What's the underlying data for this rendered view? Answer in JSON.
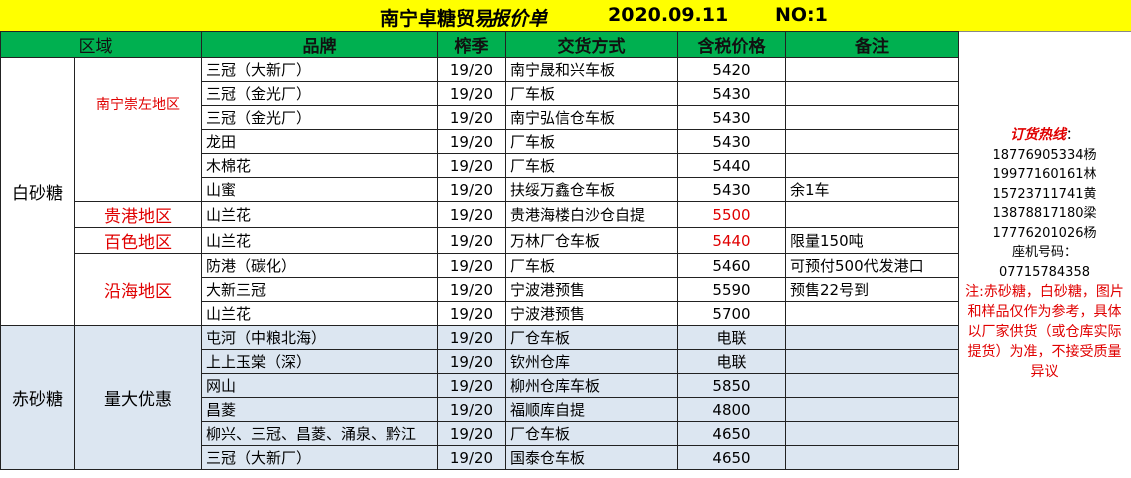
{
  "title": {
    "company": "南宁卓糖贸易",
    "doc": "报价单",
    "date": "2020.09.11",
    "no": "NO:1"
  },
  "headers": [
    "区域",
    "品牌",
    "榨季",
    "交货方式",
    "含税价格",
    "备注"
  ],
  "groups": {
    "white": "白砂糖",
    "red": "赤砂糖"
  },
  "regions": {
    "r1": "南宁崇左地区",
    "r2": "贵港地区",
    "r3": "百色地区",
    "r4": "沿海地区",
    "r5": "量大优惠"
  },
  "rows": [
    {
      "brand": "三冠（大新厂）",
      "season": "19/20",
      "delivery": "南宁晟和兴车板",
      "price": "5420",
      "note": ""
    },
    {
      "brand": "三冠（金光厂）",
      "season": "19/20",
      "delivery": "厂车板",
      "price": "5430",
      "note": ""
    },
    {
      "brand": "三冠（金光厂）",
      "season": "19/20",
      "delivery": "南宁弘信仓车板",
      "price": "5430",
      "note": ""
    },
    {
      "brand": "龙田",
      "season": "19/20",
      "delivery": "厂车板",
      "price": "5430",
      "note": ""
    },
    {
      "brand": "木棉花",
      "season": "19/20",
      "delivery": "厂车板",
      "price": "5440",
      "note": ""
    },
    {
      "brand": "山蜜",
      "season": "19/20",
      "delivery": "扶绥万鑫仓车板",
      "price": "5430",
      "note": "余1车"
    },
    {
      "brand": "山兰花",
      "season": "19/20",
      "delivery": "贵港海楼白沙仓自提",
      "price": "5500",
      "note": ""
    },
    {
      "brand": "山兰花",
      "season": "19/20",
      "delivery": "万林厂仓车板",
      "price": "5440",
      "note": "限量150吨"
    },
    {
      "brand": "防港（碳化）",
      "season": "19/20",
      "delivery": "厂车板",
      "price": "5460",
      "note": "可预付500代发港口"
    },
    {
      "brand": "大新三冠",
      "season": "19/20",
      "delivery": "宁波港预售",
      "price": "5590",
      "note": "预售22号到"
    },
    {
      "brand": "山兰花",
      "season": "19/20",
      "delivery": "宁波港预售",
      "price": "5700",
      "note": ""
    },
    {
      "brand": "屯河（中粮北海）",
      "season": "19/20",
      "delivery": "厂仓车板",
      "price": "电联",
      "note": ""
    },
    {
      "brand": "上上玉棠（深）",
      "season": "19/20",
      "delivery": "钦州仓库",
      "price": "电联",
      "note": ""
    },
    {
      "brand": "网山",
      "season": "19/20",
      "delivery": "柳州仓库车板",
      "price": "5850",
      "note": ""
    },
    {
      "brand": "昌菱",
      "season": "19/20",
      "delivery": "福顺库自提",
      "price": "4800",
      "note": ""
    },
    {
      "brand": "柳兴、三冠、昌菱、涌泉、黔江",
      "season": "19/20",
      "delivery": "厂仓车板",
      "price": "4650",
      "note": ""
    },
    {
      "brand": "三冠（大新厂）",
      "season": "19/20",
      "delivery": "国泰仓车板",
      "price": "4650",
      "note": ""
    }
  ],
  "info": {
    "hotline": "订货热线",
    "colon": "：",
    "phones": [
      "18776905334杨",
      "19977160161林",
      "15723711741黄",
      "13878817180梁",
      "17776201026杨"
    ],
    "landline_label": "座机号码：",
    "landline": "07715784358",
    "note": "注:赤砂糖，白砂糖，图片和样品仅作为参考，具体以厂家供货（或仓库实际提货）为准，不接受质量异议"
  },
  "colors": {
    "title_bg": "#ffff00",
    "header_bg": "#00b050",
    "highlight": "#e00000",
    "lower_bg": "#dce6f1"
  }
}
